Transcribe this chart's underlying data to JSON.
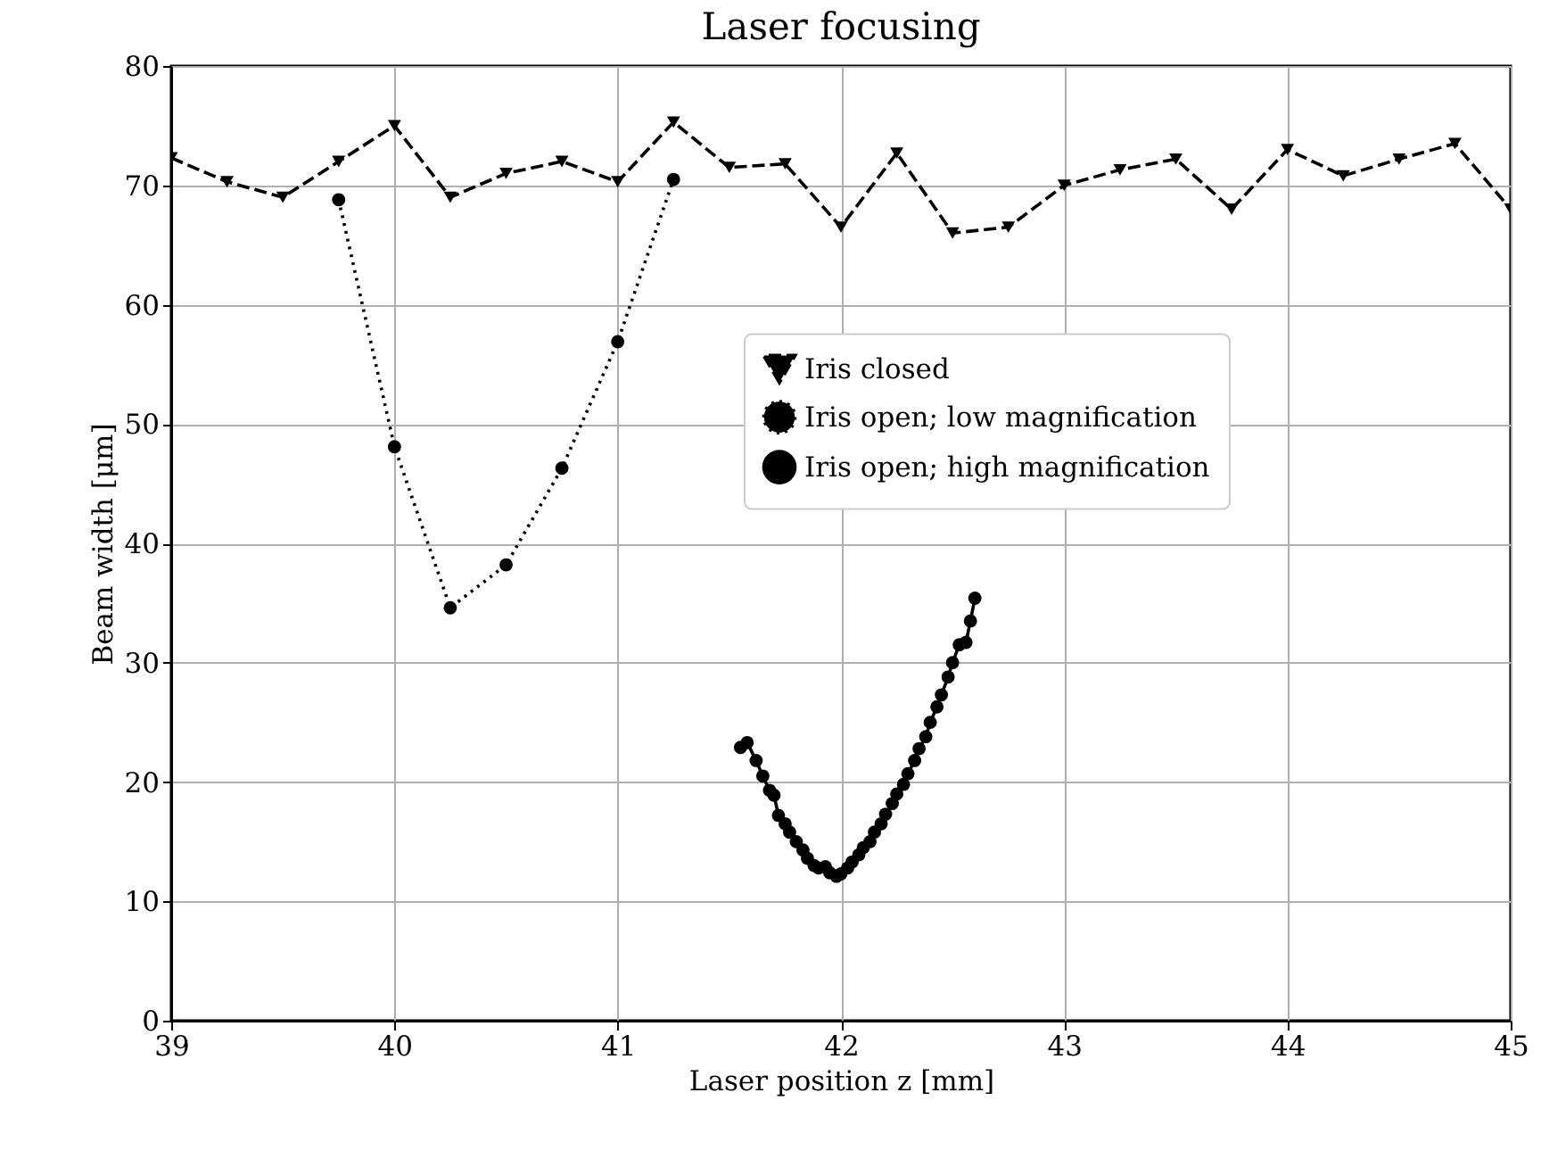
{
  "chart_data": {
    "type": "line",
    "title": "Laser focusing",
    "xlabel": "Laser position z [mm]",
    "ylabel": "Beam width [μm]",
    "xlim": [
      39,
      45
    ],
    "xticks": [
      39,
      40,
      41,
      42,
      43,
      44,
      45
    ],
    "ylim": [
      0,
      80
    ],
    "yticks": [
      0,
      10,
      20,
      30,
      40,
      50,
      60,
      70,
      80
    ],
    "grid": true,
    "legend": "right",
    "series": [
      {
        "name": "Iris closed",
        "color": "#000000",
        "marker": "triangle",
        "line_style": "dashed",
        "x": [
          39,
          39.25,
          39.5,
          39.75,
          40,
          40.25,
          40.5,
          40.75,
          41,
          41.25,
          41.5,
          41.75,
          42,
          42.25,
          42.5,
          42.75,
          43,
          43.25,
          43.5,
          43.75,
          44,
          44.25,
          44.5,
          44.75,
          45
        ],
        "values": [
          72.3,
          70.3,
          69,
          72,
          75,
          69,
          71,
          72,
          70.3,
          75.3,
          71.5,
          71.8,
          66.5,
          72.7,
          66,
          66.5,
          70,
          71.3,
          72.2,
          68,
          73,
          70.8,
          72.2,
          73.5,
          68
        ]
      },
      {
        "name": "Iris open; low magnification",
        "color": "#000000",
        "marker": "circle",
        "line_style": "dotted",
        "x": [
          39.75,
          40,
          40.25,
          40.5,
          40.75,
          41,
          41.25
        ],
        "values": [
          68.8,
          48.1,
          34.6,
          38.2,
          46.3,
          56.9,
          70.5
        ]
      },
      {
        "name": "Iris open; high magnification",
        "color": "#000000",
        "marker": "circle",
        "line_style": "solid",
        "x": [
          41.55,
          41.58,
          41.62,
          41.65,
          41.68,
          41.7,
          41.72,
          41.75,
          41.77,
          41.8,
          41.83,
          41.85,
          41.88,
          41.9,
          41.93,
          41.95,
          41.98,
          42.0,
          42.03,
          42.05,
          42.08,
          42.1,
          42.13,
          42.15,
          42.18,
          42.2,
          42.23,
          42.25,
          42.28,
          42.3,
          42.33,
          42.35,
          42.38,
          42.4,
          42.43,
          42.45,
          42.48,
          42.5,
          42.53,
          42.56,
          42.58,
          42.6
        ],
        "values": [
          22.9,
          23.3,
          21.8,
          20.5,
          19.3,
          18.9,
          17.2,
          16.5,
          15.8,
          15.0,
          14.3,
          13.6,
          13.0,
          12.8,
          12.9,
          12.4,
          12.1,
          12.3,
          12.8,
          13.3,
          13.9,
          14.5,
          15.0,
          15.8,
          16.5,
          17.3,
          18.2,
          19.0,
          19.8,
          20.7,
          21.8,
          22.8,
          23.8,
          25.0,
          26.3,
          27.3,
          28.8,
          30.0,
          31.5,
          31.7,
          33.5,
          35.4
        ]
      }
    ]
  }
}
